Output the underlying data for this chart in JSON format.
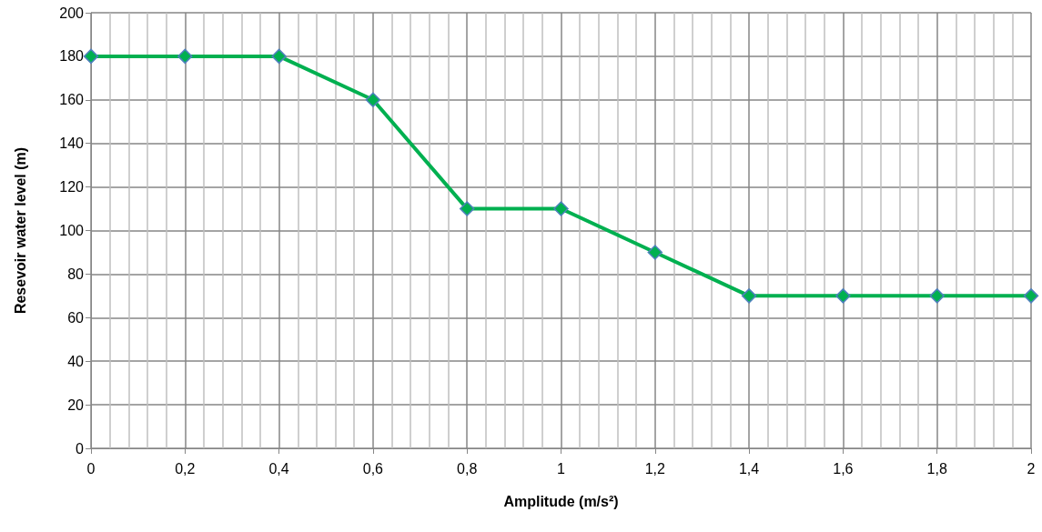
{
  "chart_data": {
    "type": "line",
    "xlabel": "Amplitude (m/s²)",
    "ylabel": "Resevoir water level (m)",
    "x": [
      0,
      0.2,
      0.4,
      0.6,
      0.8,
      1,
      1.2,
      1.4,
      1.6,
      1.8,
      2
    ],
    "series": [
      {
        "color": "#00b050",
        "values": [
          180,
          180,
          180,
          160,
          110,
          110,
          90,
          70,
          70,
          70,
          70
        ]
      }
    ],
    "xlim": [
      0,
      2
    ],
    "xticks": [
      0,
      {
        "value": 0.2,
        "label": "0,2"
      },
      {
        "value": 0.4,
        "label": "0,4"
      },
      {
        "value": 0.6,
        "label": "0,6"
      },
      {
        "value": 0.8,
        "label": "0,8"
      },
      1,
      {
        "value": 1.2,
        "label": "1,2"
      },
      {
        "value": 1.4,
        "label": "1,4"
      },
      {
        "value": 1.6,
        "label": "1,6"
      },
      {
        "value": 1.8,
        "label": "1,8"
      },
      2
    ],
    "ylim": [
      0,
      200
    ],
    "yticks": [
      0,
      20,
      40,
      60,
      80,
      100,
      120,
      140,
      160,
      180,
      200
    ],
    "grid": true,
    "marker": "diamond",
    "line_style": "solid"
  }
}
